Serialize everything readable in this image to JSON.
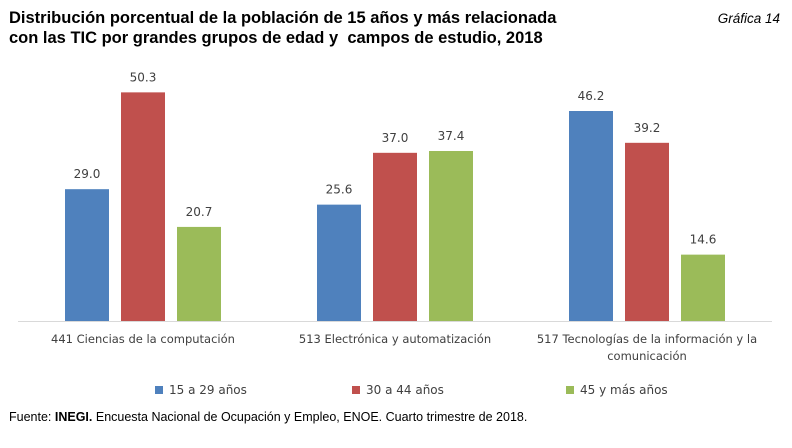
{
  "title_lines": [
    "Distribución porcentual de la población de 15 años y más relacionada",
    "con las TIC por grandes grupos de edad y  campos de estudio, 2018"
  ],
  "figure_label": "Gráfica 14",
  "source": {
    "prefix": "Fuente: ",
    "org": "INEGI.",
    "text": " Encuesta Nacional de Ocupación y Empleo, ENOE. Cuarto trimestre de 2018."
  },
  "chart_data": {
    "type": "bar",
    "categories": [
      [
        "441 Ciencias de la computación"
      ],
      [
        "513 Electrónica y automatización"
      ],
      [
        "517 Tecnologías de la información y la",
        "comunicación"
      ]
    ],
    "series": [
      {
        "name": "15 a 29 años",
        "color": "#4f81bd",
        "values": [
          29.0,
          25.6,
          46.2
        ]
      },
      {
        "name": "30 a 44 años",
        "color": "#c0504d",
        "values": [
          50.3,
          37.0,
          39.2
        ]
      },
      {
        "name": "45 y más años",
        "color": "#9bbb59",
        "values": [
          20.7,
          37.4,
          14.6
        ]
      }
    ],
    "ylim": [
      0,
      55
    ],
    "grid": false,
    "legend_position": "bottom",
    "xlabel": "",
    "ylabel": ""
  }
}
